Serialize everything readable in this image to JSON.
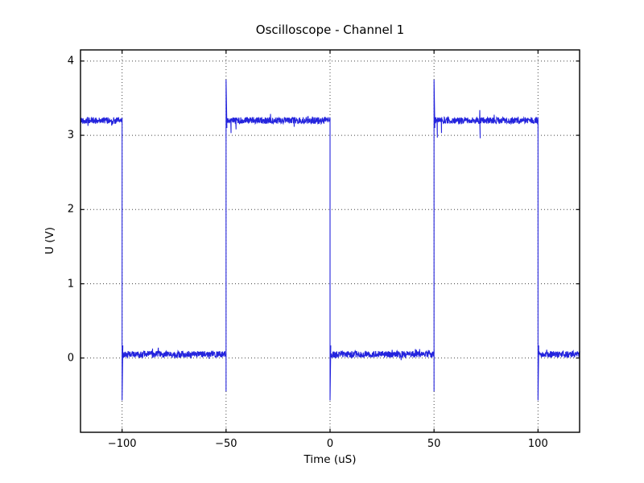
{
  "figure": {
    "title": "Oscilloscope - Channel 1",
    "background_color": "#ffffff",
    "frame_color": "#000000",
    "grid_color": "#444444",
    "text_color": "#000000"
  },
  "chart_data": {
    "type": "line",
    "title": "Oscilloscope - Channel 1",
    "xlabel": "Time (uS)",
    "ylabel": "U (V)",
    "xlim": [
      -120,
      120
    ],
    "ylim": [
      -1.0,
      4.15
    ],
    "xticks": [
      -100,
      -50,
      0,
      50,
      100
    ],
    "xtick_labels": [
      "−100",
      "−50",
      "0",
      "50",
      "100"
    ],
    "yticks": [
      0,
      1,
      2,
      3,
      4
    ],
    "ytick_labels": [
      "0",
      "1",
      "2",
      "3",
      "4"
    ],
    "grid": true,
    "grid_style": "dotted",
    "legend": "none",
    "line_color": "#2424dd",
    "series": [
      {
        "name": "Channel 1",
        "description": "noisy square wave",
        "period_us": 100,
        "high_level_v": 3.2,
        "low_level_v": 0.05,
        "noise_pp_v": 0.09,
        "rise_spike_v": 3.75,
        "fall_spike_v": -0.57,
        "pre_rise_dip_v": -0.45,
        "segments": [
          {
            "t_start": -120,
            "t_end": -100,
            "level_v": 3.2
          },
          {
            "t_start": -100,
            "t_end": -50,
            "level_v": 0.05
          },
          {
            "t_start": -50,
            "t_end": 0,
            "level_v": 3.2
          },
          {
            "t_start": 0,
            "t_end": 50,
            "level_v": 0.05
          },
          {
            "t_start": 50,
            "t_end": 100,
            "level_v": 3.2
          },
          {
            "t_start": 100,
            "t_end": 120,
            "level_v": 0.05
          }
        ],
        "edges": [
          {
            "t_us": -100,
            "type": "fall"
          },
          {
            "t_us": -50,
            "type": "rise"
          },
          {
            "t_us": 0,
            "type": "fall"
          },
          {
            "t_us": 50,
            "type": "rise"
          },
          {
            "t_us": 100,
            "type": "fall"
          }
        ],
        "post_edge_dips": [
          {
            "t_us": -47.6,
            "v": 3.03
          },
          {
            "t_us": -45.2,
            "v": 3.08
          },
          {
            "t_us": 51.6,
            "v": 2.97
          },
          {
            "t_us": 53.6,
            "v": 3.03
          }
        ],
        "glitches": [
          {
            "t_us": 72,
            "v_max": 3.34,
            "v_min": 2.96
          }
        ]
      }
    ]
  }
}
